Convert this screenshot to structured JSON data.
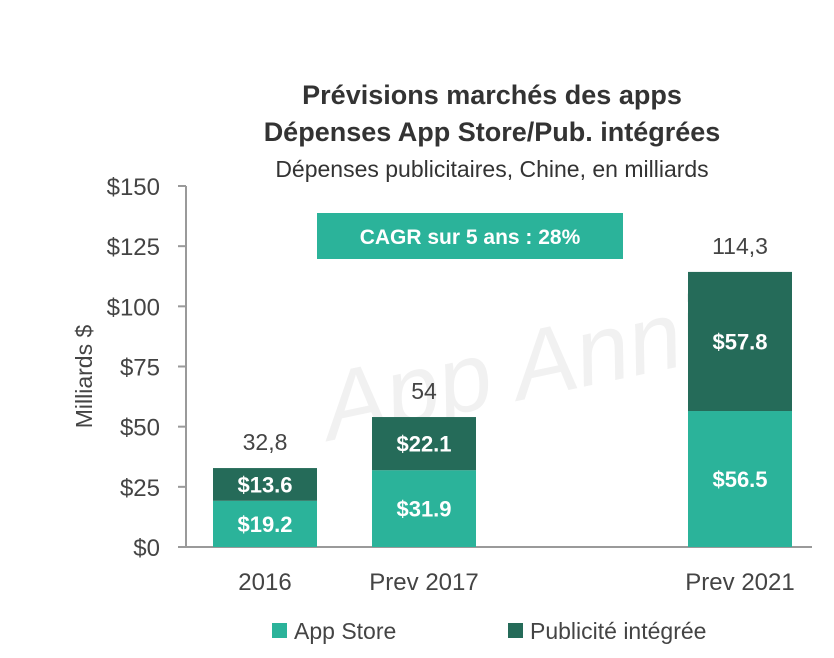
{
  "chart_data": {
    "type": "bar",
    "stacked": true,
    "title": [
      "Prévisions marchés des apps",
      "Dépenses App Store/Pub. intégrées"
    ],
    "subtitle": "Dépenses publicitaires, Chine, en milliards",
    "ylabel": "Milliards $",
    "xlabel": "",
    "ylim": [
      0,
      150
    ],
    "yticks": [
      0,
      25,
      50,
      75,
      100,
      125,
      150
    ],
    "ytick_labels": [
      "$0",
      "$25",
      "$50",
      "$75",
      "$100",
      "$125",
      "$150"
    ],
    "categories": [
      "2016",
      "Prev 2017",
      "Prev 2021"
    ],
    "series": [
      {
        "name": "App Store",
        "values": [
          19.2,
          31.9,
          56.5
        ],
        "labels": [
          "$19.2",
          "$31.9",
          "$56.5"
        ],
        "color": "#2bb39a"
      },
      {
        "name": "Publicité intégrée",
        "values": [
          13.6,
          22.1,
          57.8
        ],
        "labels": [
          "$13.6",
          "$22.1",
          "$57.8"
        ],
        "color": "#256b59"
      }
    ],
    "totals": [
      "32,8",
      "54",
      "114,3"
    ],
    "annotation": {
      "text": "CAGR sur 5 ans : 28%",
      "color": "#2bb39a"
    },
    "watermark": "App Annie",
    "legend_position": "bottom",
    "grid": false
  }
}
